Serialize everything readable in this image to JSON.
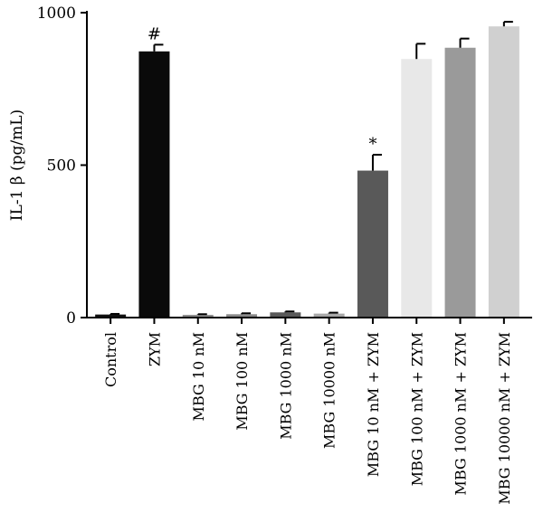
{
  "chart_data": {
    "type": "bar",
    "ylabel": "IL-1 β (pg/mL)",
    "ylim": [
      0,
      1000
    ],
    "yticks": [
      0,
      500,
      1000
    ],
    "grid": false,
    "categories": [
      "Control",
      "ZYM",
      "MBG 10 nM",
      "MBG 100 nM",
      "MBG 1000 nM",
      "MBG 10000 nM",
      "MBG 10 nM + ZYM",
      "MBG 100 nM + ZYM",
      "MBG 1000 nM + ZYM",
      "MBG 10000 nM + ZYM"
    ],
    "values": [
      10,
      873,
      9,
      11,
      17,
      13,
      482,
      848,
      885,
      955
    ],
    "errors": [
      2,
      22,
      2,
      3,
      3,
      3,
      52,
      50,
      30,
      15
    ],
    "colors": [
      "#111111",
      "#0a0a0a",
      "#8f8f8f",
      "#8a8a8a",
      "#595959",
      "#a8a8a8",
      "#595959",
      "#e8e8e8",
      "#9a9a9a",
      "#d0d0d0"
    ],
    "annotations": [
      {
        "category": "ZYM",
        "text": "#"
      },
      {
        "category": "MBG 10 nM + ZYM",
        "text": "*"
      }
    ]
  }
}
